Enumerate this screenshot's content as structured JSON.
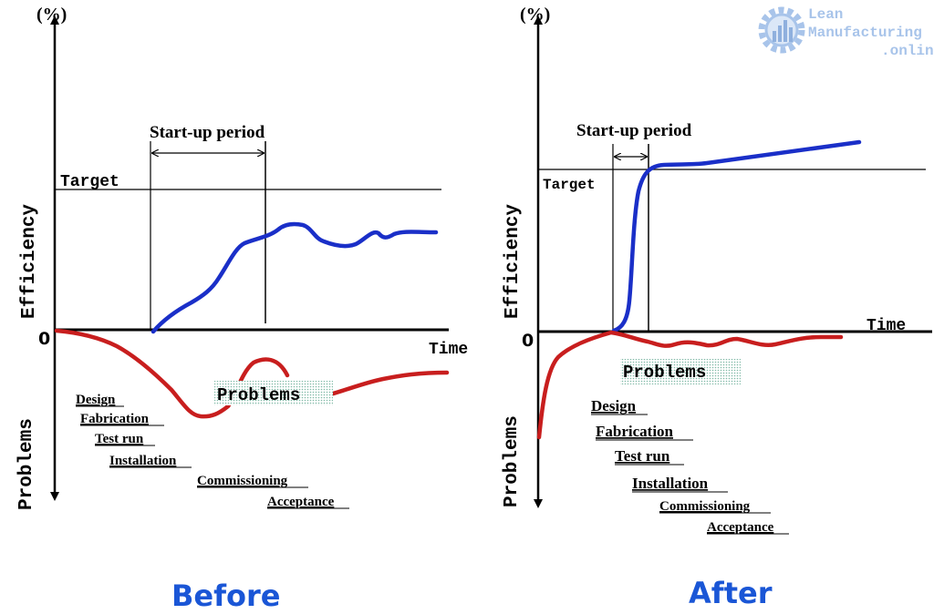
{
  "logo": {
    "line1": "Lean",
    "line2": "Manufacturing",
    "line3": ".online"
  },
  "before": {
    "caption": "Before",
    "unit": "(%)",
    "y_label_top": "Efficiency",
    "y_label_bottom": "Problems",
    "zero": "0",
    "x_label": "Time",
    "target_label": "Target",
    "startup_label": "Start-up period",
    "problems_label": "Problems",
    "stages": [
      "Design",
      "Fabrication",
      "Test run",
      "Installation",
      "Commissioning",
      "Acceptance"
    ]
  },
  "after": {
    "caption": "After",
    "unit": "(%)",
    "y_label_top": "Efficiency",
    "y_label_bottom": "Problems",
    "zero": "0",
    "x_label": "Time",
    "target_label": "Target",
    "startup_label": "Start-up period",
    "problems_label": "Problems",
    "stages": [
      "Design",
      "Fabrication",
      "Test run",
      "Installation",
      "Commissioning",
      "Acceptance"
    ]
  },
  "colors": {
    "efficiency": "#1a2fc8",
    "problems": "#c81e1e",
    "caption": "#1a56d6",
    "logo": "#a8c4ea",
    "highlight": "#d8efe8"
  }
}
